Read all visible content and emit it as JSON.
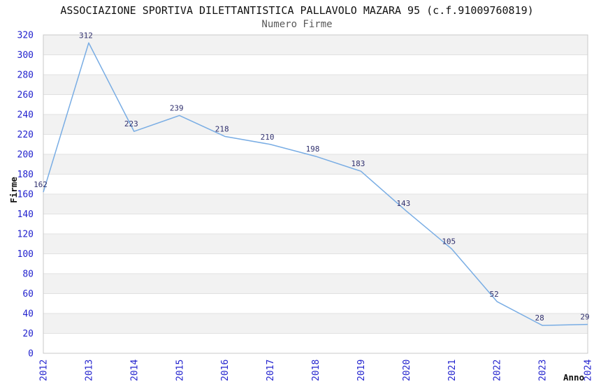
{
  "header": {
    "title": "ASSOCIAZIONE SPORTIVA DILETTANTISTICA PALLAVOLO MAZARA 95 (c.f.91009760819)",
    "subtitle": "Numero Firme"
  },
  "chart_data": {
    "type": "line",
    "title": "ASSOCIAZIONE SPORTIVA DILETTANTISTICA PALLAVOLO MAZARA 95 (c.f.91009760819)",
    "subtitle": "Numero Firme",
    "xlabel": "Anno",
    "ylabel": "Firme",
    "x": [
      "2012",
      "2013",
      "2014",
      "2015",
      "2016",
      "2017",
      "2018",
      "2019",
      "2020",
      "2021",
      "2022",
      "2023",
      "2024"
    ],
    "series": [
      {
        "name": "Numero Firme",
        "values": [
          162,
          312,
          223,
          239,
          218,
          210,
          198,
          183,
          143,
          105,
          52,
          28,
          29
        ]
      }
    ],
    "ylim": [
      0,
      320
    ],
    "ytick_step": 20,
    "grid": "horizontal",
    "banded_background": true,
    "legend": "none",
    "point_labels_visible": true,
    "colors": {
      "line": "#79ADE4",
      "tick_label": "#2323CE",
      "value_label": "#30306E",
      "band": "#F2F2F2",
      "gridline": "#E1E1E1",
      "border": "#C9C9C9",
      "title": "#111111",
      "subtitle": "#595959",
      "axis_label": "#111111"
    }
  }
}
